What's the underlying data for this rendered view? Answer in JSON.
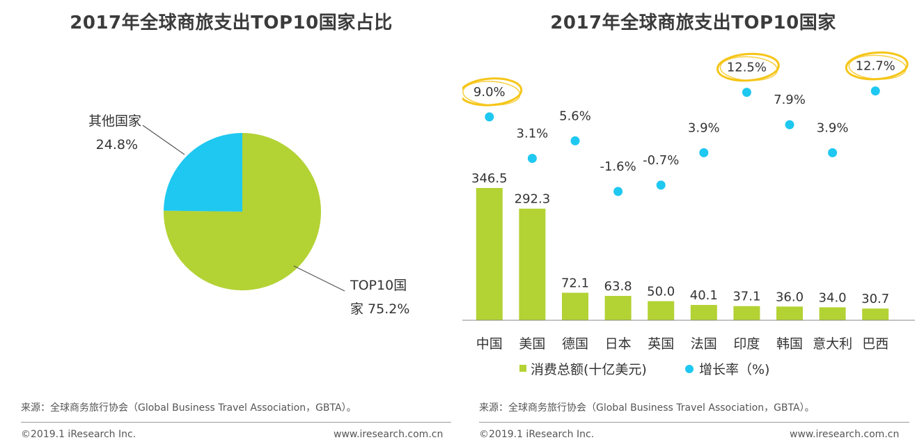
{
  "footer": {
    "source": "来源：全球商务旅行协会（Global Business Travel Association，GBTA）。",
    "copyright": "©2019.1 iResearch Inc.",
    "website": "www.iresearch.com.cn"
  },
  "colors": {
    "green": "#b3d234",
    "blue": "#1fc8f0",
    "highlight": "#f5c518",
    "text": "#333333"
  },
  "chart_data": [
    {
      "type": "pie",
      "title": "2017年全球商旅支出TOP10国家占比",
      "slices": [
        {
          "label_lines": [
            "TOP10国",
            "家 75.2%"
          ],
          "value": 75.2,
          "color": "#b3d234"
        },
        {
          "label_lines": [
            "其他国家",
            "24.8%"
          ],
          "value": 24.8,
          "color": "#1fc8f0"
        }
      ]
    },
    {
      "type": "bar",
      "title": "2017年全球商旅支出TOP10国家",
      "categories": [
        "中国",
        "美国",
        "德国",
        "日本",
        "英国",
        "法国",
        "印度",
        "韩国",
        "意大利",
        "巴西"
      ],
      "series": [
        {
          "name": "消费总额(十亿美元)",
          "type": "bar",
          "color": "#b3d234",
          "values": [
            346.5,
            292.3,
            72.1,
            63.8,
            50.0,
            40.1,
            37.1,
            36.0,
            34.0,
            30.7
          ],
          "labels": [
            "346.5",
            "292.3",
            "72.1",
            "63.8",
            "50.0",
            "40.1",
            "37.1",
            "36.0",
            "34.0",
            "30.7"
          ]
        },
        {
          "name": "增长率（%)",
          "type": "scatter",
          "color": "#1fc8f0",
          "values": [
            9.0,
            3.1,
            5.6,
            -1.6,
            -0.7,
            3.9,
            12.5,
            7.9,
            3.9,
            12.7
          ],
          "labels": [
            "9.0%",
            "3.1%",
            "5.6%",
            "-1.6%",
            "-0.7%",
            "3.9%",
            "12.5%",
            "7.9%",
            "3.9%",
            "12.7%"
          ]
        }
      ],
      "highlighted": [
        "中国",
        "印度",
        "巴西"
      ]
    }
  ]
}
